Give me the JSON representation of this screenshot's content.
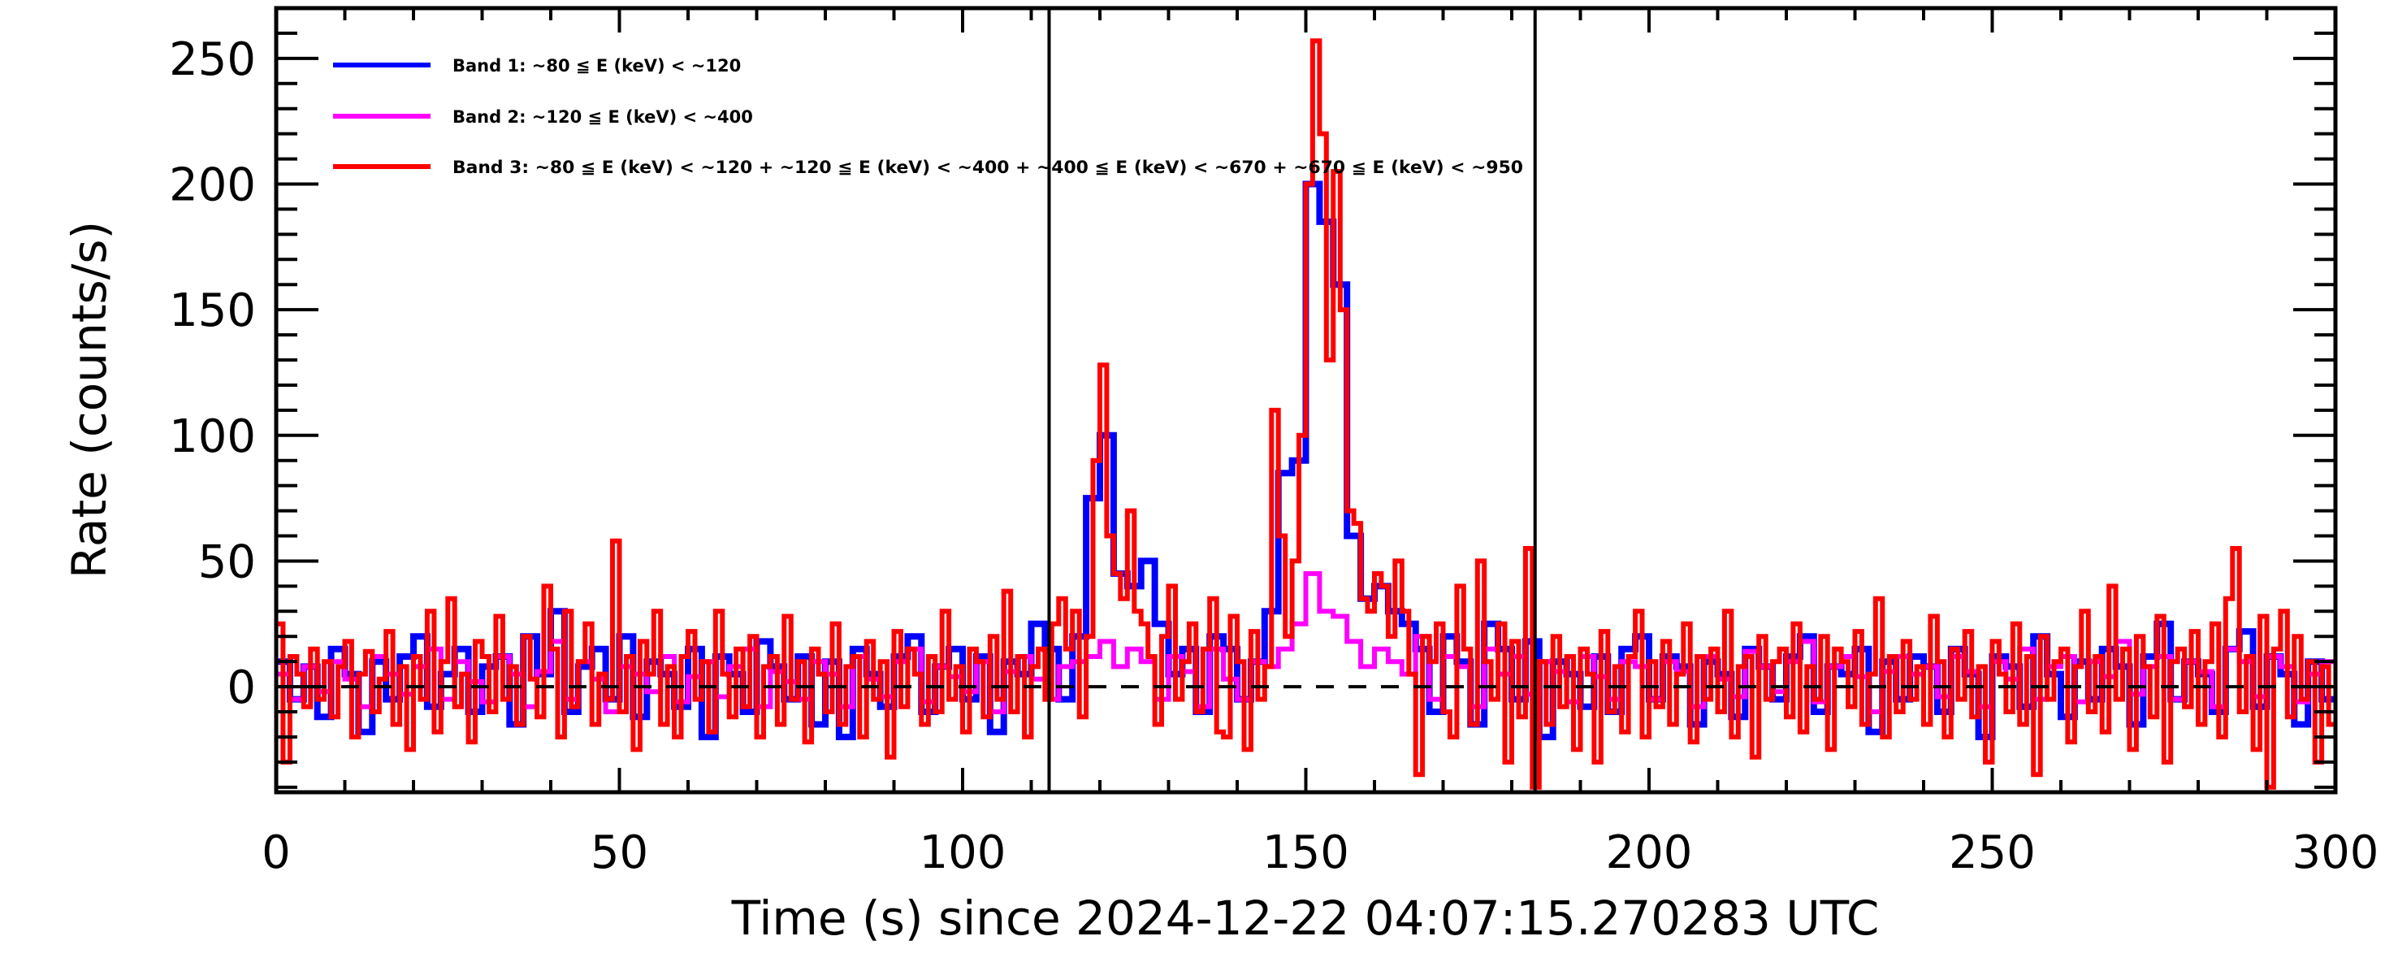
{
  "chart_data": {
    "type": "line",
    "title": "",
    "xlabel": "Time (s) since 2024-12-22 04:07:15.270283 UTC",
    "ylabel": "Rate (counts/s)",
    "xlim": [
      0,
      300
    ],
    "ylim": [
      -42,
      270
    ],
    "xticks": [
      "0",
      "50",
      "100",
      "150",
      "200",
      "250",
      "300"
    ],
    "yticks": [
      "0",
      "50",
      "100",
      "150",
      "200",
      "250"
    ],
    "xtick_values": [
      0,
      50,
      100,
      150,
      200,
      250,
      300
    ],
    "ytick_values": [
      0,
      50,
      100,
      150,
      200,
      250
    ],
    "minor_tick_step_x": 10,
    "minor_tick_step_y": 10,
    "vertical_markers": [
      112.6,
      183.4
    ],
    "zero_line": 0,
    "legend_position": "top-left",
    "series": [
      {
        "name": "Band 1: ~80 ≦ E (keV) < ~120",
        "color": "#0000ff",
        "bin_width": 2,
        "start": 0,
        "values": [
          10,
          -5,
          8,
          -12,
          15,
          5,
          -18,
          10,
          -5,
          12,
          20,
          -8,
          5,
          15,
          -10,
          8,
          12,
          -15,
          20,
          5,
          30,
          -10,
          8,
          15,
          -5,
          20,
          -12,
          10,
          5,
          -8,
          15,
          -20,
          12,
          5,
          -10,
          18,
          8,
          -5,
          12,
          -15,
          10,
          -20,
          15,
          5,
          -8,
          12,
          20,
          -10,
          8,
          15,
          -5,
          12,
          -18,
          10,
          5,
          25,
          15,
          -5,
          20,
          75,
          100,
          45,
          40,
          50,
          25,
          5,
          15,
          -10,
          20,
          15,
          -5,
          10,
          30,
          85,
          90,
          200,
          185,
          160,
          60,
          35,
          40,
          30,
          25,
          15,
          -10,
          20,
          10,
          -15,
          25,
          15,
          -5,
          18,
          -20,
          10,
          5,
          -8,
          12,
          -10,
          15,
          20,
          -5,
          12,
          8,
          -15,
          10,
          5,
          -12,
          15,
          8,
          -5,
          12,
          20,
          -10,
          8,
          5,
          15,
          -18,
          10,
          -5,
          12,
          8,
          -10,
          15,
          5,
          -20,
          12,
          8,
          -8,
          20,
          5,
          -12,
          10,
          -5,
          15,
          8,
          -15,
          12,
          25,
          -5,
          10,
          5,
          -10,
          15,
          22,
          -8,
          12,
          5,
          -15,
          10,
          -5
        ]
      },
      {
        "name": "Band 2: ~120 ≦ E (keV) < ~400",
        "color": "#ff00ff",
        "bin_width": 2,
        "start": 0,
        "values": [
          5,
          -5,
          8,
          -2,
          10,
          3,
          -8,
          12,
          5,
          -3,
          8,
          15,
          -5,
          10,
          2,
          -6,
          12,
          5,
          -8,
          6,
          18,
          -5,
          10,
          3,
          -10,
          8,
          5,
          -2,
          12,
          -6,
          4,
          10,
          -4,
          8,
          15,
          -8,
          6,
          2,
          -5,
          10,
          5,
          -8,
          12,
          3,
          -4,
          10,
          15,
          -6,
          8,
          4,
          -2,
          10,
          -10,
          6,
          12,
          3,
          -5,
          8,
          10,
          12,
          18,
          8,
          15,
          10,
          -5,
          12,
          6,
          -8,
          15,
          3,
          -5,
          10,
          8,
          15,
          25,
          45,
          30,
          28,
          18,
          8,
          15,
          10,
          5,
          20,
          -5,
          12,
          8,
          -8,
          15,
          5,
          12,
          -3,
          10,
          6,
          -6,
          12,
          4,
          -5,
          10,
          8,
          -5,
          10,
          6,
          -8,
          12,
          3,
          -4,
          14,
          8,
          -2,
          10,
          18,
          -6,
          8,
          12,
          4,
          -10,
          6,
          12,
          5,
          8,
          -4,
          12,
          6,
          -8,
          10,
          3,
          15,
          -5,
          8,
          12,
          -6,
          10,
          4,
          18,
          -3,
          8,
          12,
          -5,
          10,
          6,
          -8,
          15,
          10,
          -4,
          12,
          8,
          -6,
          5,
          10
        ]
      },
      {
        "name": "Band 3: ~80 ≦ E (keV) < ~120 + ~120 ≦ E (keV) < ~400 + ~400 ≦ E (keV) < ~670 + ~670 ≦ E (keV) < ~950",
        "color": "#ff0000",
        "bin_width": 1,
        "start": 0,
        "values": [
          25,
          -30,
          12,
          5,
          -8,
          15,
          -5,
          10,
          -12,
          8,
          18,
          -20,
          5,
          14,
          -10,
          3,
          22,
          -15,
          8,
          -25,
          12,
          -5,
          30,
          -18,
          10,
          35,
          -8,
          5,
          -22,
          18,
          12,
          -10,
          28,
          -5,
          8,
          -15,
          20,
          3,
          -12,
          40,
          15,
          -20,
          30,
          -8,
          10,
          25,
          -15,
          5,
          -5,
          58,
          -10,
          12,
          -25,
          18,
          5,
          30,
          -15,
          8,
          -20,
          12,
          22,
          -5,
          10,
          -18,
          30,
          5,
          -12,
          15,
          -8,
          20,
          -20,
          8,
          12,
          -15,
          28,
          -5,
          10,
          -22,
          15,
          5,
          -10,
          25,
          -15,
          8,
          12,
          -20,
          18,
          -5,
          10,
          -28,
          22,
          -8,
          15,
          5,
          -15,
          12,
          -10,
          30,
          -5,
          8,
          -18,
          15,
          10,
          -12,
          20,
          -5,
          38,
          -10,
          12,
          -20,
          8,
          15,
          -5,
          25,
          35,
          15,
          30,
          -12,
          20,
          90,
          128,
          60,
          45,
          35,
          70,
          30,
          25,
          12,
          -15,
          20,
          40,
          -5,
          10,
          25,
          -10,
          15,
          35,
          -18,
          -20,
          28,
          10,
          -25,
          22,
          -5,
          8,
          110,
          60,
          20,
          50,
          100,
          200,
          257,
          220,
          130,
          205,
          150,
          70,
          65,
          35,
          30,
          45,
          40,
          20,
          50,
          30,
          5,
          -35,
          20,
          10,
          25,
          -10,
          -20,
          40,
          15,
          -15,
          50,
          10,
          -5,
          25,
          -30,
          18,
          -12,
          55,
          -40,
          10,
          -15,
          20,
          -8,
          12,
          -25,
          15,
          5,
          -30,
          22,
          -10,
          8,
          -18,
          12,
          30,
          -20,
          10,
          -8,
          18,
          -15,
          5,
          25,
          -22,
          12,
          -5,
          15,
          -10,
          30,
          -20,
          8,
          12,
          -28,
          20,
          -5,
          10,
          15,
          -12,
          25,
          -18,
          8,
          -5,
          20,
          -25,
          15,
          10,
          -8,
          22,
          -15,
          5,
          35,
          -20,
          12,
          -10,
          18,
          -5,
          8,
          -15,
          28,
          10,
          -20,
          15,
          -5,
          22,
          -12,
          8,
          -30,
          18,
          5,
          -10,
          25,
          -15,
          12,
          -35,
          20,
          -5,
          10,
          15,
          -22,
          8,
          30,
          -10,
          12,
          -18,
          40,
          -5,
          15,
          -25,
          20,
          8,
          -12,
          28,
          -30,
          10,
          15,
          -8,
          22,
          -15,
          10,
          25,
          -20,
          35,
          55,
          -10,
          12,
          -25,
          28,
          -40,
          15,
          30,
          -12,
          20,
          -5,
          10,
          -30,
          8,
          -15
        ]
      }
    ]
  }
}
